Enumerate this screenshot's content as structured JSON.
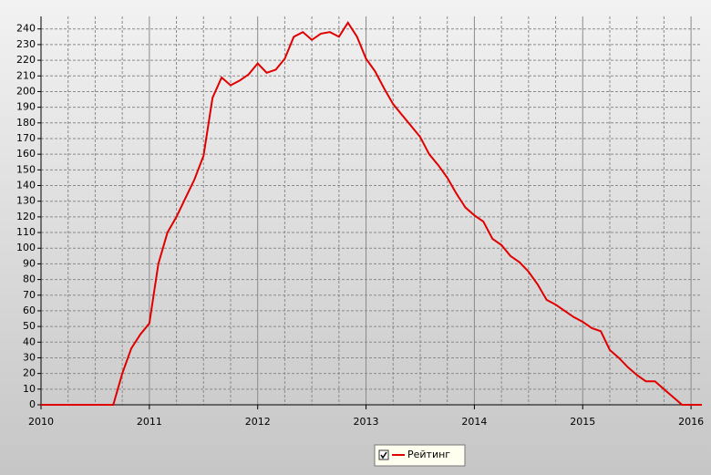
{
  "chart_data": {
    "type": "line",
    "x": [
      2010,
      2010.667,
      2010.75,
      2010.833,
      2010.917,
      2011,
      2011.083,
      2011.167,
      2011.25,
      2011.333,
      2011.417,
      2011.5,
      2011.583,
      2011.667,
      2011.75,
      2011.833,
      2011.917,
      2012,
      2012.083,
      2012.167,
      2012.25,
      2012.333,
      2012.417,
      2012.5,
      2012.583,
      2012.667,
      2012.75,
      2012.833,
      2012.917,
      2013,
      2013.083,
      2013.167,
      2013.25,
      2013.333,
      2013.417,
      2013.5,
      2013.583,
      2013.667,
      2013.75,
      2013.833,
      2013.917,
      2014,
      2014.083,
      2014.167,
      2014.25,
      2014.333,
      2014.417,
      2014.5,
      2014.583,
      2014.667,
      2014.75,
      2014.833,
      2014.917,
      2015,
      2015.083,
      2015.167,
      2015.25,
      2015.333,
      2015.417,
      2015.5,
      2015.583,
      2015.667,
      2015.75,
      2015.833,
      2015.917,
      2016.1
    ],
    "series": [
      {
        "name": "Рейтинг",
        "color": "#e00000",
        "values": [
          0,
          0,
          20,
          36,
          45,
          52,
          90,
          110,
          120,
          132,
          144,
          159,
          196,
          209,
          204,
          207,
          211,
          218,
          212,
          214,
          221,
          235,
          238,
          233,
          237,
          238,
          235,
          244,
          235,
          221,
          213,
          202,
          192,
          185,
          178,
          171,
          160,
          153,
          145,
          135,
          126,
          121,
          117,
          106,
          102,
          95,
          91,
          85,
          77,
          67,
          64,
          60,
          56,
          53,
          49,
          47,
          35,
          30,
          24,
          19,
          15,
          15,
          10,
          5,
          0,
          0
        ]
      }
    ],
    "xlim": [
      2010,
      2016.1
    ],
    "xticks": [
      2010,
      2011,
      2012,
      2013,
      2014,
      2015,
      2016
    ],
    "ylim": [
      0,
      248
    ],
    "yticks": [
      0,
      10,
      20,
      30,
      40,
      50,
      60,
      70,
      80,
      90,
      100,
      110,
      120,
      130,
      140,
      150,
      160,
      170,
      180,
      190,
      200,
      210,
      220,
      230,
      240
    ],
    "grid": true,
    "legend": "bottom"
  }
}
